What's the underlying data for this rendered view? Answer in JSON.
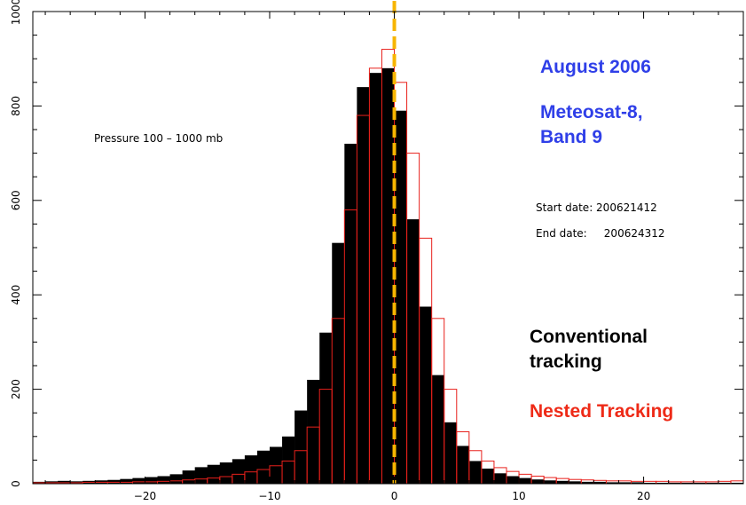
{
  "chart_data": {
    "type": "bar",
    "x_range": [
      -29,
      28
    ],
    "ylim": [
      0,
      1000
    ],
    "bin_width": 1,
    "x_ticks": [
      -20,
      -10,
      0,
      10,
      20
    ],
    "x_tick_labels": [
      "−20",
      "−10",
      "0",
      "10",
      "20"
    ],
    "y_ticks": [
      0,
      200,
      400,
      600,
      800,
      1000
    ],
    "y_tick_labels": [
      "0",
      "200",
      "400",
      "600",
      "800",
      "1000"
    ],
    "reference_line_x": 0,
    "bins": [
      -29,
      -28,
      -27,
      -26,
      -25,
      -24,
      -23,
      -22,
      -21,
      -20,
      -19,
      -18,
      -17,
      -16,
      -15,
      -14,
      -13,
      -12,
      -11,
      -10,
      -9,
      -8,
      -7,
      -6,
      -5,
      -4,
      -3,
      -2,
      -1,
      0,
      1,
      2,
      3,
      4,
      5,
      6,
      7,
      8,
      9,
      10,
      11,
      12,
      13,
      14,
      15,
      16,
      17,
      18,
      19,
      20,
      21,
      22,
      23,
      24,
      25,
      26,
      27
    ],
    "series": [
      {
        "name": "Conventional tracking",
        "style": "filled",
        "color": "#000000",
        "values": [
          4,
          5,
          6,
          5,
          6,
          7,
          8,
          10,
          12,
          14,
          16,
          20,
          28,
          35,
          40,
          45,
          52,
          60,
          70,
          78,
          100,
          155,
          220,
          320,
          510,
          720,
          840,
          870,
          880,
          790,
          560,
          375,
          230,
          130,
          80,
          48,
          32,
          22,
          16,
          12,
          9,
          7,
          6,
          5,
          4,
          4,
          3,
          3,
          3,
          2,
          2,
          2,
          2,
          2,
          2,
          2,
          2
        ]
      },
      {
        "name": "Nested Tracking",
        "style": "outline",
        "color": "#e8201b",
        "values": [
          2,
          2,
          2,
          2,
          3,
          3,
          3,
          3,
          4,
          4,
          5,
          6,
          8,
          10,
          12,
          15,
          20,
          25,
          30,
          38,
          48,
          70,
          120,
          200,
          350,
          580,
          780,
          880,
          920,
          850,
          700,
          520,
          350,
          200,
          110,
          70,
          48,
          34,
          26,
          20,
          16,
          13,
          11,
          9,
          8,
          7,
          6,
          6,
          5,
          5,
          5,
          4,
          4,
          4,
          4,
          5,
          6
        ]
      }
    ],
    "annotations": [
      {
        "text": "Pressure 100 – 1000 mb"
      },
      {
        "text": "August 2006"
      },
      {
        "text": "Meteosat-8,"
      },
      {
        "text": "Band 9"
      },
      {
        "text": "Start date: 200621412"
      },
      {
        "text": "End date:     200624312"
      },
      {
        "text": "Conventional"
      },
      {
        "text": "tracking"
      },
      {
        "text": "Nested Tracking"
      }
    ],
    "colors": {
      "zero_line": "#f7b500",
      "blue_text": "#2f3fe8",
      "red_text": "#ee2a17"
    }
  }
}
